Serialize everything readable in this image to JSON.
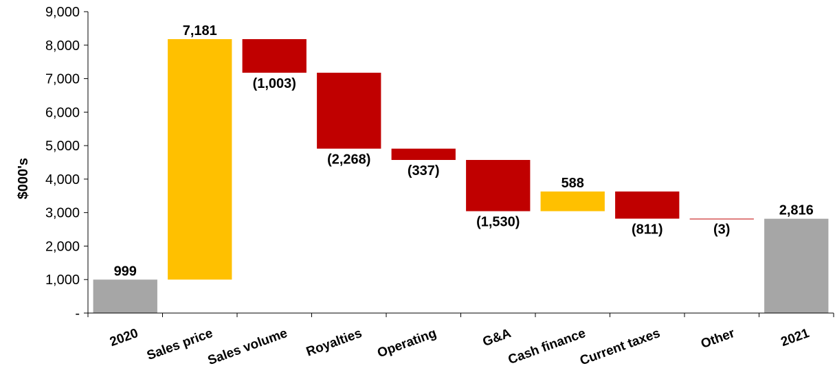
{
  "chart_data": {
    "type": "bar",
    "subtype": "waterfall",
    "title": "",
    "xlabel": "",
    "ylabel": "$000's",
    "ylim": [
      0,
      9000
    ],
    "yticks": [
      0,
      1000,
      2000,
      3000,
      4000,
      5000,
      6000,
      7000,
      8000,
      9000
    ],
    "ytick_labels": [
      "-",
      "1,000",
      "2,000",
      "3,000",
      "4,000",
      "5,000",
      "6,000",
      "7,000",
      "8,000",
      "9,000"
    ],
    "grid": false,
    "legend": "none",
    "categories": [
      "2020",
      "Sales price",
      "Sales volume",
      "Royalties",
      "Operating",
      "G&A",
      "Cash finance",
      "Current taxes",
      "Other",
      "2021"
    ],
    "values": [
      999,
      7181,
      -1003,
      -2268,
      -337,
      -1530,
      588,
      -811,
      -3,
      2816
    ],
    "kinds": [
      "total",
      "delta",
      "delta",
      "delta",
      "delta",
      "delta",
      "delta",
      "delta",
      "delta",
      "total"
    ],
    "data_labels": [
      "999",
      "7,181",
      "(1,003)",
      "(2,268)",
      "(337)",
      "(1,530)",
      "588",
      "(811)",
      "(3)",
      "2,816"
    ],
    "colors": {
      "total": "#A6A6A6",
      "increase": "#FFC000",
      "decrease": "#C00000",
      "axis": "#000000"
    }
  }
}
